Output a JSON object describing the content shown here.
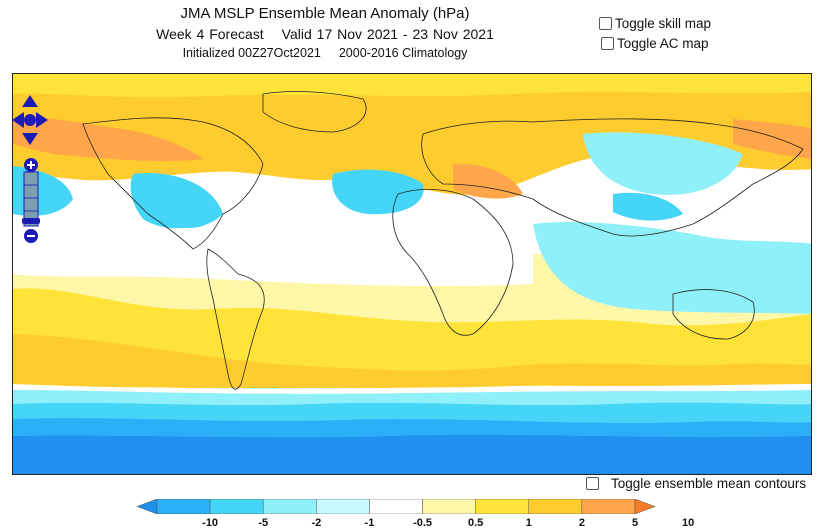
{
  "header": {
    "title": "JMA MSLP Ensemble Mean Anomaly (hPa)",
    "forecast": "Week 4 Forecast",
    "valid": "Valid 17 Nov 2021 - 23 Nov 2021",
    "initialized": "Initialized 00Z27Oct2021",
    "climatology": "2000-2016 Climatology"
  },
  "toggles": {
    "skill_map": "Toggle skill map",
    "ac_map": "Toggle AC map",
    "ensemble_contours": "Toggle ensemble mean contours"
  },
  "map_controls": {
    "pan": [
      "up-arrow-icon",
      "down-arrow-icon",
      "left-arrow-icon",
      "right-arrow-icon"
    ],
    "zoom": [
      "zoom-in-icon",
      "zoom-out-icon"
    ]
  },
  "legend": {
    "labels": [
      "-10",
      "-5",
      "-2",
      "-1",
      "-0.5",
      "0.5",
      "1",
      "2",
      "5",
      "10"
    ],
    "colors": [
      "#1f8ff0",
      "#29b0f7",
      "#45d5f7",
      "#8ff0fa",
      "#c6f8ff",
      "#ffffff",
      "#fff7a8",
      "#ffe338",
      "#ffcc2f",
      "#ffa64a",
      "#f77c26"
    ]
  },
  "colors": {
    "strong_negative": "#1f8ff0",
    "negative": "#45d5f7",
    "weak_negative": "#c6f8ff",
    "weak_positive": "#fff7a8",
    "positive": "#ffcc2f",
    "strong_positive": "#ffa64a",
    "nav_control": "#1c1cb4"
  }
}
